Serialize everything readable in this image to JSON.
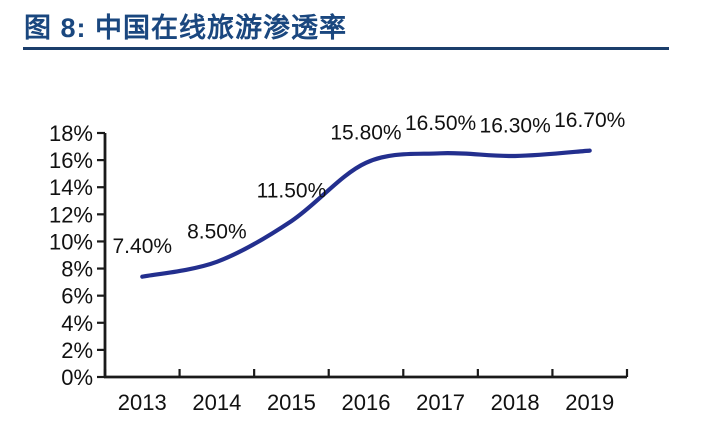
{
  "header": {
    "title": "图 8: 中国在线旅游渗透率"
  },
  "colors": {
    "title_blue": "#1A477F",
    "rule_blue": "#1B3E6B",
    "series_blue": "#232F8E",
    "axis_black": "#1a1a1a",
    "label_black": "#111111"
  },
  "chart_data": {
    "type": "line",
    "title": "中国在线旅游渗透率",
    "categories": [
      "2013",
      "2014",
      "2015",
      "2016",
      "2017",
      "2018",
      "2019"
    ],
    "series": [
      {
        "name": "中国在线旅游渗透率",
        "values": [
          7.4,
          8.5,
          11.5,
          15.8,
          16.5,
          16.3,
          16.7
        ]
      }
    ],
    "data_labels": [
      "7.40%",
      "8.50%",
      "11.50%",
      "15.80%",
      "16.50%",
      "16.30%",
      "16.70%"
    ],
    "y_ticks": [
      "0%",
      "2%",
      "4%",
      "6%",
      "8%",
      "10%",
      "12%",
      "14%",
      "16%",
      "18%"
    ],
    "ylim": [
      0,
      18
    ],
    "y_tick_step": 2,
    "xlabel": "",
    "ylabel": "",
    "grid": "off",
    "legend": "none",
    "line_smoothing": "smooth"
  }
}
